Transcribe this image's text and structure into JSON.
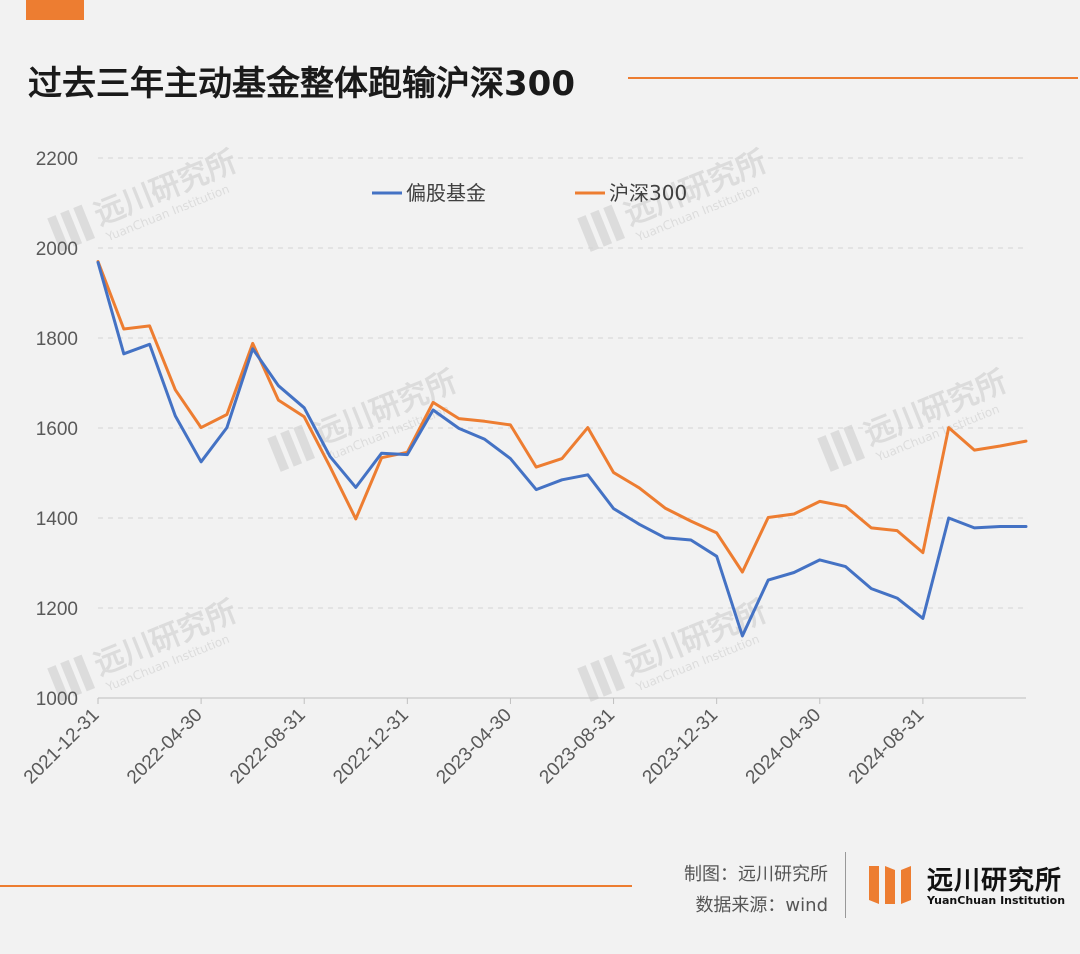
{
  "page": {
    "title": "过去三年主动基金整体跑输沪深300",
    "credit_label": "制图：远川研究所",
    "source_label": "数据来源：wind",
    "brand_name": "远川研究所",
    "brand_subtitle": "YuanChuan Institution",
    "watermark_text": "远川研究所",
    "watermark_subtext": "YuanChuan Institution"
  },
  "colors": {
    "accent": "#ed7d31",
    "series_fund": "#4472c4",
    "series_index": "#ed7d31"
  },
  "chart_data": {
    "type": "line",
    "title": "",
    "xlabel": "",
    "ylabel": "",
    "ylim": [
      1000,
      2200
    ],
    "yticks": [
      1000,
      1200,
      1400,
      1600,
      1800,
      2000,
      2200
    ],
    "grid": "horizontal dashed",
    "legend_position": "top-center",
    "x": [
      "2021-12-31",
      "2022-01-31",
      "2022-02-28",
      "2022-03-31",
      "2022-04-30",
      "2022-05-31",
      "2022-06-30",
      "2022-07-31",
      "2022-08-31",
      "2022-09-30",
      "2022-10-31",
      "2022-11-30",
      "2022-12-31",
      "2023-01-31",
      "2023-02-28",
      "2023-03-31",
      "2023-04-30",
      "2023-05-31",
      "2023-06-30",
      "2023-07-31",
      "2023-08-31",
      "2023-09-30",
      "2023-10-31",
      "2023-11-30",
      "2023-12-31",
      "2024-01-31",
      "2024-02-29",
      "2024-03-31",
      "2024-04-30",
      "2024-05-31",
      "2024-06-30",
      "2024-07-31",
      "2024-08-31",
      "2024-09-30",
      "2024-10-31",
      "2024-11-30",
      "2024-12-31"
    ],
    "x_tick_labels": [
      "2021-12-31",
      "2022-04-30",
      "2022-08-31",
      "2022-12-31",
      "2023-04-30",
      "2023-08-31",
      "2023-12-31",
      "2024-04-30",
      "2024-08-31"
    ],
    "x_tick_indices": [
      0,
      4,
      8,
      12,
      16,
      20,
      24,
      28,
      32
    ],
    "series": [
      {
        "name": "偏股基金",
        "color": "#4472c4",
        "values": [
          1968,
          1765,
          1786,
          1627,
          1525,
          1601,
          1776,
          1694,
          1645,
          1537,
          1468,
          1544,
          1541,
          1640,
          1599,
          1575,
          1532,
          1463,
          1485,
          1496,
          1421,
          1386,
          1356,
          1351,
          1315,
          1138,
          1262,
          1279,
          1307,
          1292,
          1243,
          1222,
          1177,
          1400,
          1378,
          1381,
          1381
        ]
      },
      {
        "name": "沪深300",
        "color": "#ed7d31",
        "values": [
          1970,
          1820,
          1827,
          1685,
          1601,
          1630,
          1788,
          1662,
          1625,
          1514,
          1398,
          1534,
          1546,
          1657,
          1621,
          1615,
          1607,
          1513,
          1532,
          1601,
          1501,
          1467,
          1422,
          1393,
          1367,
          1280,
          1401,
          1409,
          1437,
          1426,
          1378,
          1372,
          1323,
          1601,
          1551,
          1560,
          1571
        ]
      }
    ]
  }
}
